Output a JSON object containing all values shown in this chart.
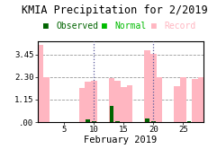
{
  "title": "KMIA Precipitation for 2/2019",
  "xlabel": "February 2019",
  "legend_labels": [
    "Observed",
    "Normal",
    "Record"
  ],
  "legend_colors": [
    "#006400",
    "#00bb00",
    "#ffb6c1"
  ],
  "background_color": "#ffffff",
  "ylim": [
    0,
    4.1
  ],
  "yticks": [
    0.0,
    1.15,
    2.3,
    3.45
  ],
  "ytick_labels": [
    ".00",
    "1.15",
    "2.30",
    "3.45"
  ],
  "xticks": [
    5,
    10,
    15,
    20,
    25
  ],
  "xlim": [
    0.5,
    28.5
  ],
  "days": [
    1,
    2,
    3,
    4,
    5,
    6,
    7,
    8,
    9,
    10,
    11,
    12,
    13,
    14,
    15,
    16,
    17,
    18,
    19,
    20,
    21,
    22,
    23,
    24,
    25,
    26,
    27,
    28
  ],
  "record_values": [
    3.95,
    2.3,
    0.0,
    0.0,
    0.0,
    0.0,
    0.0,
    1.75,
    2.05,
    2.1,
    0.0,
    0.0,
    2.25,
    2.1,
    1.8,
    1.9,
    0.0,
    0.0,
    3.65,
    3.5,
    2.3,
    0.0,
    0.0,
    1.85,
    2.3,
    0.0,
    2.2,
    2.3
  ],
  "observed_values": [
    0.0,
    0.0,
    0.0,
    0.0,
    0.0,
    0.0,
    0.0,
    0.0,
    0.12,
    0.07,
    0.0,
    0.0,
    0.85,
    0.07,
    0.0,
    0.0,
    0.0,
    0.0,
    0.18,
    0.05,
    0.0,
    0.0,
    0.0,
    0.0,
    0.0,
    0.06,
    0.0,
    0.0
  ],
  "record_color": "#ffb6c1",
  "observed_color": "#006400",
  "vline_days": [
    10,
    20
  ],
  "vline_color": "#555599",
  "grid_color": "#999999",
  "title_fontsize": 8.5,
  "legend_fontsize": 7,
  "tick_fontsize": 6.5,
  "xlabel_fontsize": 7.5
}
